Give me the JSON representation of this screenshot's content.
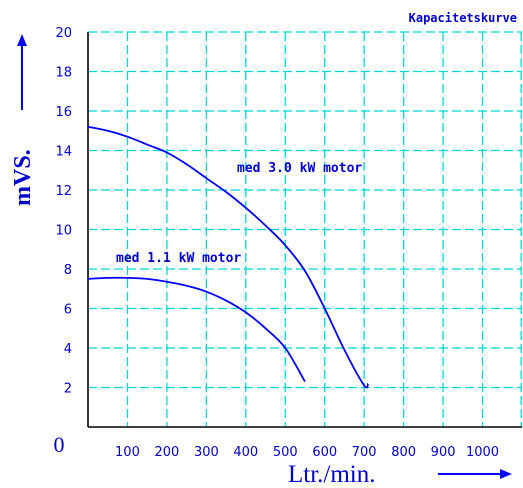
{
  "chart_data": {
    "type": "line",
    "title": "Kapacitetskurve",
    "xlabel": "Ltr./min.",
    "ylabel": "mVS.",
    "origin_label": "0",
    "xlim": [
      0,
      1100
    ],
    "ylim": [
      0,
      20
    ],
    "x_ticks": [
      100,
      200,
      300,
      400,
      500,
      600,
      700,
      800,
      900,
      1000
    ],
    "y_ticks": [
      2,
      4,
      6,
      8,
      10,
      12,
      14,
      16,
      18,
      20
    ],
    "grid": true,
    "grid_style": "dashed",
    "series": [
      {
        "name": "med 3.0 kW motor",
        "x": [
          0,
          50,
          100,
          150,
          200,
          250,
          300,
          350,
          400,
          450,
          500,
          550,
          600,
          650,
          700,
          710
        ],
        "y": [
          15.2,
          15.0,
          14.7,
          14.3,
          13.9,
          13.3,
          12.6,
          11.9,
          11.1,
          10.2,
          9.2,
          7.9,
          6.0,
          3.9,
          2.1,
          2.2
        ]
      },
      {
        "name": "med 1.1 kW motor",
        "x": [
          0,
          50,
          100,
          150,
          200,
          250,
          300,
          350,
          400,
          450,
          500,
          550
        ],
        "y": [
          7.5,
          7.55,
          7.55,
          7.5,
          7.35,
          7.15,
          6.85,
          6.4,
          5.8,
          5.0,
          4.0,
          2.3
        ]
      }
    ],
    "colors": {
      "curves": "#0000ff",
      "grid": "#00d8d8",
      "axis": "#000000",
      "text": "#0000cc"
    }
  }
}
